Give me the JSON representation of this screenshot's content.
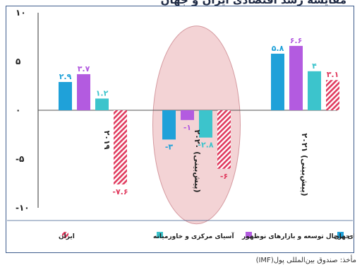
{
  "header": {
    "title_fragment": "مقایسه رشد اقتصادی ایران و جهان"
  },
  "source_note": "مأخذ: صندوق بین‌المللی پول(IMF)",
  "chart_data": {
    "type": "bar",
    "title": "",
    "xlabel": "",
    "ylabel": "",
    "ylim": [
      -10,
      10
    ],
    "y_ticks": [
      -10,
      -5,
      0,
      5,
      10
    ],
    "y_tick_labels": [
      "-۱۰",
      "-۵",
      "۰",
      "۵",
      "۱۰"
    ],
    "grid": false,
    "legend_position": "bottom",
    "categories": [
      "۲۰۱۹",
      "۲۰۲۰ (پیش‌بینی)",
      "۲۰۲۱ (پیش‌بینی)"
    ],
    "series": [
      {
        "name": "جهان",
        "color": "#1fa1d9",
        "values": [
          2.9,
          -3,
          5.8
        ],
        "labels": [
          "۲.۹",
          "-۳",
          "۵.۸"
        ]
      },
      {
        "name": "اقتصادهای درحال توسعه و بازارهای نوظهور",
        "color": "#b35be0",
        "values": [
          3.7,
          -1,
          6.6
        ],
        "labels": [
          "۳.۷",
          "-۱",
          "۶.۶"
        ]
      },
      {
        "name": "آسیای مرکزی و خاورمیانه",
        "color": "#3cc4cc",
        "values": [
          1.2,
          -2.8,
          4
        ],
        "labels": [
          "۱.۲",
          "-۲.۸",
          "۴"
        ]
      },
      {
        "name": "ایران",
        "color": "#e03a5e",
        "pattern": "hatched",
        "values": [
          -7.6,
          -6,
          3.1
        ],
        "labels": [
          "-۷.۶",
          "-۶",
          "۳.۱"
        ]
      }
    ],
    "highlight": {
      "category_index": 1,
      "shape": "ellipse",
      "color": "#f3d3d5"
    }
  }
}
